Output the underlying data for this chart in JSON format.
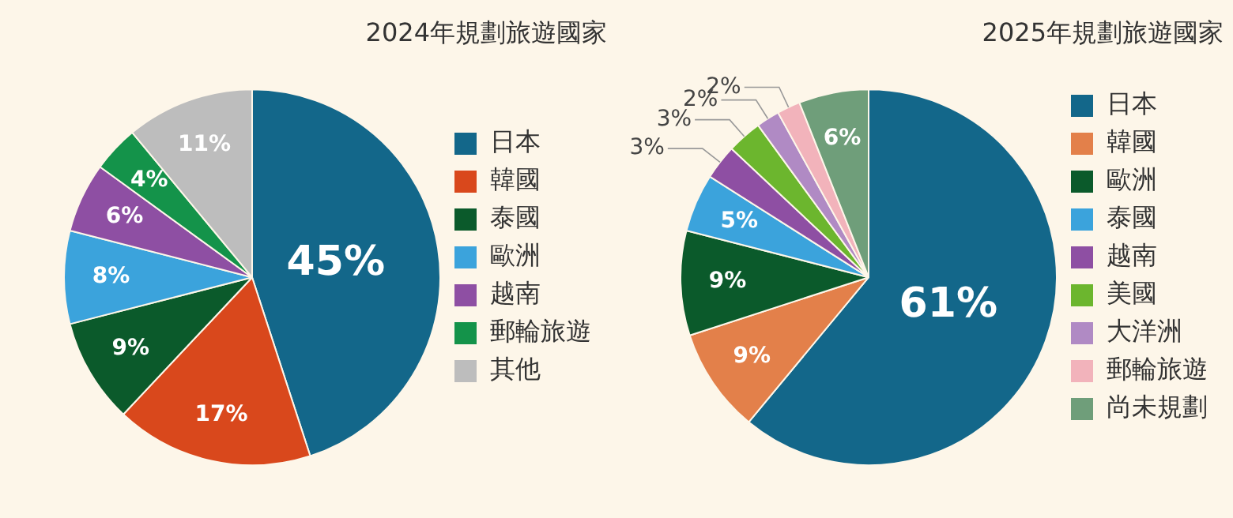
{
  "chart_data": [
    {
      "type": "pie",
      "title": "2024年規劃旅遊國家",
      "categories": [
        "日本",
        "韓國",
        "泰國",
        "歐洲",
        "越南",
        "郵輪旅遊",
        "其他"
      ],
      "values": [
        45,
        17,
        9,
        8,
        6,
        4,
        11
      ],
      "value_labels": [
        "45%",
        "17%",
        "9%",
        "8%",
        "6%",
        "4%",
        "11%"
      ],
      "colors": [
        "#13678a",
        "#d9481c",
        "#0b5a2b",
        "#3ba3dc",
        "#8e4fa3",
        "#14934a",
        "#bdbdbd"
      ],
      "legend": "right"
    },
    {
      "type": "pie",
      "title": "2025年規劃旅遊國家",
      "categories": [
        "日本",
        "韓國",
        "歐洲",
        "泰國",
        "越南",
        "美國",
        "大洋洲",
        "郵輪旅遊",
        "尚未規劃"
      ],
      "values": [
        61,
        9,
        9,
        5,
        3,
        3,
        2,
        2,
        6
      ],
      "value_labels": [
        "61%",
        "9%",
        "9%",
        "5%",
        "3%",
        "3%",
        "2%",
        "2%",
        "6%"
      ],
      "colors": [
        "#13678a",
        "#e3804a",
        "#0b5a2b",
        "#3ba3dc",
        "#8e4fa3",
        "#6cb62e",
        "#b08ac4",
        "#f2b3bb",
        "#6f9e7a"
      ],
      "legend": "right"
    }
  ]
}
